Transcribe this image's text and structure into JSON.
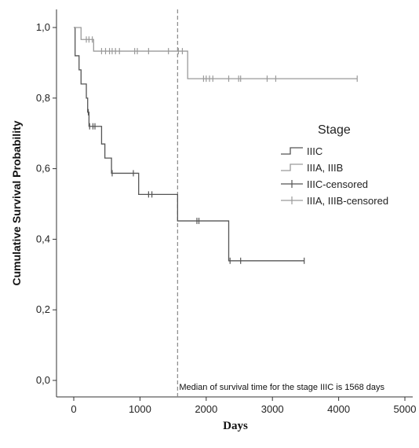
{
  "chart_data": {
    "type": "line",
    "title": "",
    "xlabel": "Days",
    "ylabel": "Cumulative Survival Probability",
    "xlim": [
      0,
      5000
    ],
    "ylim": [
      0,
      1
    ],
    "x_ticks": [
      0,
      1000,
      2000,
      3000,
      4000,
      5000
    ],
    "x_tick_labels": [
      "0",
      "1000",
      "2000",
      "3000",
      "4000",
      "5000"
    ],
    "y_ticks": [
      0,
      0.2,
      0.4,
      0.6,
      0.8,
      1.0
    ],
    "y_tick_labels": [
      "0,0",
      "0,2",
      "0,4",
      "0,6",
      "0,8",
      "1,0"
    ],
    "grid": false,
    "legend": {
      "title": "Stage",
      "position": "right",
      "entries": [
        "IIIC",
        "IIIA, IIIB",
        "IIIC-censored",
        "IIIA, IIIB-censored"
      ]
    },
    "series": [
      {
        "name": "IIIC",
        "color": "#555555",
        "steps": [
          [
            0,
            1.0
          ],
          [
            20,
            0.92
          ],
          [
            80,
            0.88
          ],
          [
            110,
            0.84
          ],
          [
            190,
            0.8
          ],
          [
            210,
            0.76
          ],
          [
            230,
            0.72
          ],
          [
            420,
            0.67
          ],
          [
            470,
            0.63
          ],
          [
            570,
            0.587
          ],
          [
            980,
            0.527
          ],
          [
            1568,
            0.452
          ],
          [
            2340,
            0.339
          ],
          [
            3480,
            0.339
          ]
        ],
        "censored": [
          220,
          240,
          290,
          320,
          580,
          900,
          1130,
          1180,
          1860,
          1890,
          2360,
          2520,
          3480
        ]
      },
      {
        "name": "IIIA, IIIB",
        "color": "#9a9a9a",
        "steps": [
          [
            0,
            1.0
          ],
          [
            110,
            0.966
          ],
          [
            300,
            0.933
          ],
          [
            1720,
            0.855
          ],
          [
            4280,
            0.855
          ]
        ],
        "censored": [
          190,
          230,
          280,
          420,
          480,
          540,
          580,
          630,
          690,
          920,
          960,
          1130,
          1430,
          1580,
          1640,
          1960,
          2000,
          2050,
          2100,
          2340,
          2490,
          2520,
          2920,
          3050,
          4280
        ]
      }
    ],
    "annotation": {
      "x": 1568,
      "label": "Median of survival time for the stage IIIC is 1568 days"
    }
  }
}
